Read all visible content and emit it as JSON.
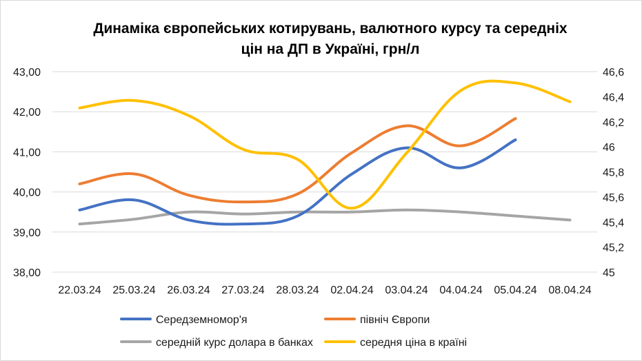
{
  "chart_data": {
    "type": "line",
    "title_lines": [
      "Динаміка європейських котирувань, валютного курсу та середніх",
      "цін на ДП в Україні, грн/л"
    ],
    "categories": [
      "22.03.24",
      "25.03.24",
      "26.03.24",
      "27.03.24",
      "28.03.24",
      "02.04.24",
      "03.04.24",
      "04.04.24",
      "05.04.24",
      "08.04.24"
    ],
    "y_left": {
      "min": 38,
      "max": 43,
      "ticks": [
        "38,00",
        "39,00",
        "40,00",
        "41,00",
        "42,00",
        "43,00"
      ]
    },
    "y_right": {
      "min": 45,
      "max": 46.6,
      "ticks": [
        "45",
        "45,2",
        "45,4",
        "45,6",
        "45,8",
        "46",
        "46,2",
        "46,4",
        "46,6"
      ]
    },
    "grid": true,
    "legend_position": "bottom",
    "series": [
      {
        "name": "Середземномор'я",
        "color": "#4472C4",
        "axis": "left",
        "values": [
          39.55,
          39.8,
          39.3,
          39.2,
          39.4,
          40.45,
          41.1,
          40.6,
          41.3,
          null
        ]
      },
      {
        "name": "північ Європи",
        "color": "#ED7D31",
        "axis": "left",
        "values": [
          40.2,
          40.45,
          39.92,
          39.75,
          39.95,
          40.98,
          41.65,
          41.15,
          41.83,
          null
        ]
      },
      {
        "name": "середній курс долара в банках",
        "color": "#A5A5A5",
        "axis": "left",
        "values": [
          39.2,
          39.32,
          39.5,
          39.45,
          39.5,
          39.5,
          39.55,
          39.5,
          39.4,
          39.3
        ]
      },
      {
        "name": "середня ціна в країні",
        "color": "#FFC000",
        "axis": "right",
        "values": [
          46.31,
          46.37,
          46.25,
          45.98,
          45.9,
          45.51,
          45.95,
          46.45,
          46.51,
          46.36
        ]
      }
    ]
  }
}
